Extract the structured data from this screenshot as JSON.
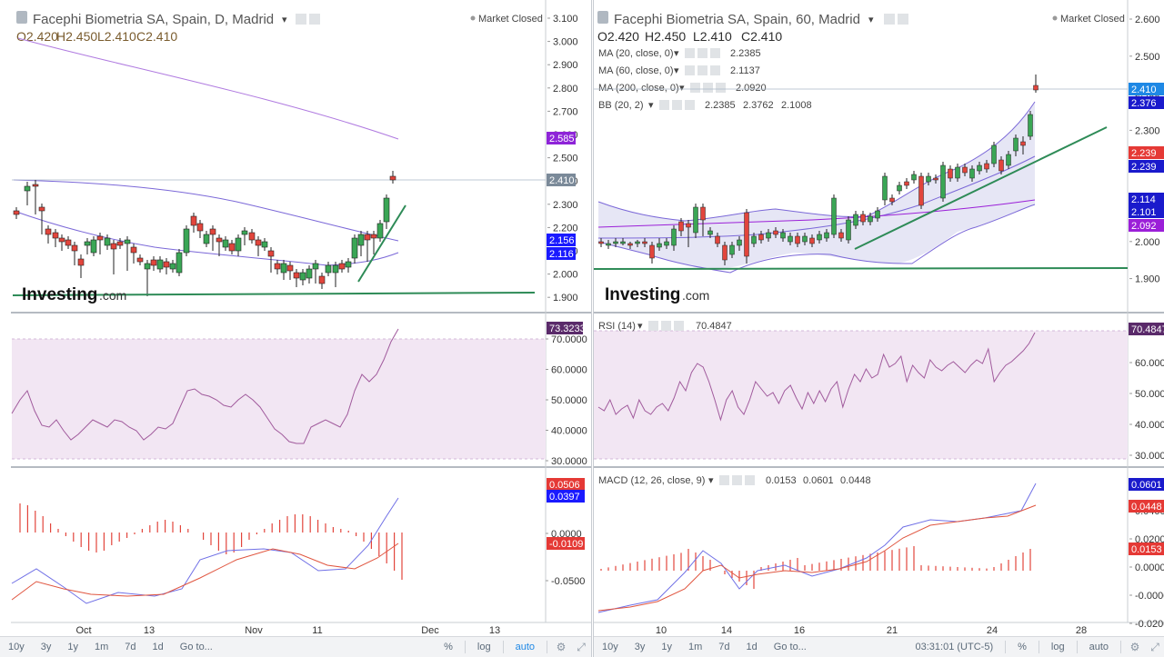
{
  "left": {
    "title": "Facephi Biometria SA, Spain, D, Madrid",
    "market_status": "Market Closed",
    "ohlc": {
      "o": "O2.420",
      "h": "H2.450",
      "l": "L2.410",
      "c": "C2.410"
    },
    "price_axis": [
      "3.100",
      "3.000",
      "2.900",
      "2.800",
      "2.700",
      "2.600",
      "2.500",
      "2.400",
      "2.300",
      "2.200",
      "2.100",
      "2.000",
      "1.900"
    ],
    "price_badges": [
      {
        "label": "2.585",
        "color": "#8e24d8"
      },
      {
        "label": "2.410",
        "color": "#7b8a99"
      },
      {
        "label": "2.156",
        "color": "#1a1aff"
      },
      {
        "label": "2.116",
        "color": "#1a1aff"
      }
    ],
    "rsi_axis": [
      "70.0000",
      "60.0000",
      "50.0000",
      "40.0000",
      "30.0000"
    ],
    "rsi_badge": {
      "label": "73.3233",
      "color": "#5a2a6a"
    },
    "macd_axis": [
      "0.0000",
      "-0.0500"
    ],
    "macd_badges": [
      {
        "label": "0.0506",
        "color": "#e53935"
      },
      {
        "label": "0.0397",
        "color": "#1a1aff"
      },
      {
        "label": "-0.0109",
        "color": "#e53935"
      }
    ],
    "date_axis": [
      "Oct",
      "13",
      "Nov",
      "11",
      "Dec",
      "13"
    ],
    "watermark": "Investing",
    "watermark_suffix": ".com",
    "toolbar": {
      "ranges": [
        "10y",
        "3y",
        "1y",
        "1m",
        "7d",
        "1d"
      ],
      "goto": "Go to...",
      "percent": "%",
      "log": "log",
      "auto": "auto"
    }
  },
  "right": {
    "title": "Facephi Biometria SA, Spain, 60, Madrid",
    "market_status": "Market Closed",
    "ohlc": {
      "o": "O2.420",
      "h": "H2.450",
      "l": "L2.410",
      "c": "C2.410"
    },
    "indicators": [
      {
        "label": "MA (20, close, 0)",
        "value": "2.2385",
        "color": "#1a1acc"
      },
      {
        "label": "MA (60, close, 0)",
        "value": "2.1137",
        "color": "#1a1acc"
      },
      {
        "label": "MA (200, close, 0)",
        "value": "2.0920",
        "color": "#9b1fd8"
      }
    ],
    "bb": {
      "label": "BB (20, 2)",
      "values": [
        {
          "value": "2.2385",
          "color": "#e53935"
        },
        {
          "value": "2.3762",
          "color": "#1a1acc"
        },
        {
          "value": "2.1008",
          "color": "#1a1acc"
        }
      ]
    },
    "price_axis": [
      "2.600",
      "2.500",
      "2.400",
      "2.300",
      "2.200",
      "2.100",
      "2.000",
      "1.900"
    ],
    "price_badges": [
      {
        "label": "2.410",
        "color": "#1e88e5"
      },
      {
        "label": "2.376",
        "color": "#1a1acc"
      },
      {
        "label": "2.239",
        "color": "#e53935"
      },
      {
        "label": "2.239",
        "color": "#1a1acc"
      },
      {
        "label": "2.114",
        "color": "#1a1acc"
      },
      {
        "label": "2.101",
        "color": "#1a1acc"
      },
      {
        "label": "2.092",
        "color": "#9b1fd8"
      }
    ],
    "rsi": {
      "label": "RSI (14)",
      "value": "70.4847"
    },
    "rsi_axis": [
      "60.0000",
      "50.0000",
      "40.0000",
      "30.0000"
    ],
    "rsi_badge": {
      "label": "70.4847",
      "color": "#5a2a6a"
    },
    "macd": {
      "label": "MACD (12, 26, close, 9)",
      "values": [
        {
          "value": "0.0153",
          "color": "#e53935"
        },
        {
          "value": "0.0601",
          "color": "#1a1acc"
        },
        {
          "value": "0.0448",
          "color": "#e53935"
        }
      ]
    },
    "macd_axis": [
      "0.0400",
      "0.0200",
      "0.0000",
      "-0.0000",
      "-0.0200"
    ],
    "macd_badges": [
      {
        "label": "0.0601",
        "color": "#1a1acc"
      },
      {
        "label": "0.0448",
        "color": "#e53935"
      },
      {
        "label": "0.0153",
        "color": "#e53935"
      }
    ],
    "date_axis": [
      "10",
      "14",
      "16",
      "21",
      "24",
      "28"
    ],
    "watermark": "Investing",
    "watermark_suffix": ".com",
    "toolbar": {
      "ranges": [
        "10y",
        "3y",
        "1y",
        "1m",
        "7d",
        "1d"
      ],
      "goto": "Go to...",
      "time": "03:31:01 (UTC-5)",
      "percent": "%",
      "log": "log",
      "auto": "auto"
    }
  }
}
